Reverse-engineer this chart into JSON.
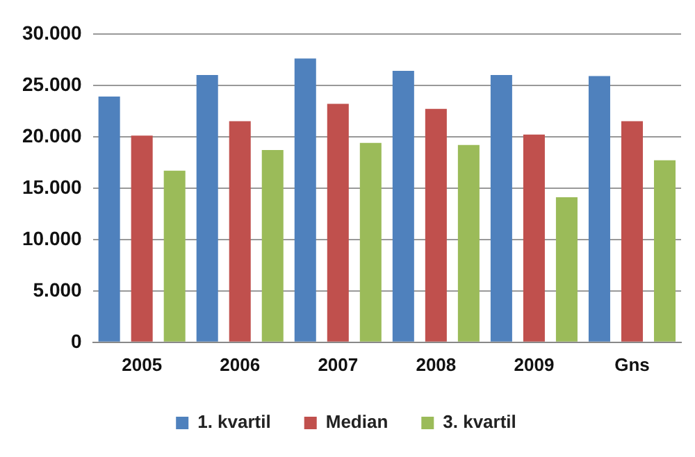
{
  "chart_data": {
    "type": "bar",
    "categories": [
      "2005",
      "2006",
      "2007",
      "2008",
      "2009",
      "Gns"
    ],
    "series": [
      {
        "name": "1. kvartil",
        "color": "#4f81bd",
        "values": [
          23900,
          26000,
          27600,
          26400,
          26000,
          25900
        ]
      },
      {
        "name": "Median",
        "color": "#c0504d",
        "values": [
          20100,
          21500,
          23200,
          22700,
          20200,
          21500
        ]
      },
      {
        "name": "3. kvartil",
        "color": "#9bbb59",
        "values": [
          16700,
          18700,
          19400,
          19200,
          14100,
          17700
        ]
      }
    ],
    "ylim": [
      0,
      30000
    ],
    "yticks": [
      0,
      {
        "value": 5000,
        "label": "5.000"
      },
      {
        "value": 10000,
        "label": "10.000"
      },
      {
        "value": 15000,
        "label": "15.000"
      },
      {
        "value": 20000,
        "label": "20.000"
      },
      {
        "value": 25000,
        "label": "25.000"
      },
      {
        "value": 30000,
        "label": "30.000"
      }
    ],
    "grid": "y",
    "legend": "bottom"
  }
}
